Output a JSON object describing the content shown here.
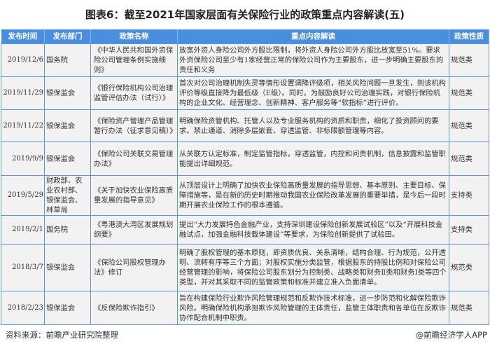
{
  "title": "图表6：截至2021年国家层面有关保险行业的政策重点内容解读(五)",
  "table": {
    "headers": [
      "发布时间",
      "发布部门",
      "政策名称",
      "重点内容解读",
      "政策性质"
    ],
    "rows": [
      {
        "date": "2019/12/6",
        "dept": "国务院",
        "name": "《中华人民共和国外资保险公司管理条例实施细则》",
        "content": "放宽外资人身险公司外方股比限制，将外资人身险公司外方股比放宽至51%。要求外资保险公司至少有1家经营正常的保险公司作为主要股东，进一步明确主要股东的责任和义务",
        "nature": "规范类"
      },
      {
        "date": "2019/11/29",
        "dept": "银保监会",
        "name": "《银行保险机构公司治理监管评估办法（试行）》",
        "content": "首次对公司治理机制失灵等情形设置调降评级项，相关风险问题一旦发生，则该机构评价等级直接降为最低级（E级）。同时，为鼓励良好公司治理实践，对银行保险机构的企业文化、经营理念、创新精神、客户服务等“软指标”进行评价。",
        "nature": "规范类"
      },
      {
        "date": "2019/11/22",
        "dept": "银保监会",
        "name": "《保险资产管理产品管理暂行办法（征求意见稿）》",
        "content": "明确保险资管机构、托管人以及专业服务机构的资质和职责，细化了投资顾问的要求。禁止通道、消除多层嵌套、穿透监管、非标限额管理等内容。",
        "nature": "规范类"
      },
      {
        "date": "2019/9/9",
        "dept": "银保监会",
        "name": "《保险公司关联交易管理办法》",
        "content": "从关联方认定标准，制定监管指标，穿透监管，内控和问责机制，信息披露和监管职能提出详细规范。",
        "nature": "规范类"
      },
      {
        "date": "2019/5/29",
        "dept": "财政部、农业农村部、银保监会、林草局",
        "name": "《关于加快农业保险高质量发展的指导意见》",
        "content": "从顶层设计上明确了加快农业保险高质量发展的指导思想、基本原则、主要目标、保障措施等，是在新的历史时期推动我国农业保险改革发展的重要举措，是今后一段时期开展农业保险工作的根本遵循。",
        "nature": "支持类"
      },
      {
        "date": "2019/2/1",
        "dept": "国务院",
        "name": "《粤港澳大湾区发展规划纲要》",
        "content": "提出“大力发展特色金融产业，支持深圳建设保险创新发展试验区”以及“开展科技金融试点，加强金融科技载体建设”等要求，为保险创新提供了试验田。",
        "nature": "支持类"
      },
      {
        "date": "2018/3/7",
        "dept": "银保监会",
        "name": "《保险公司股权管理办法》修订",
        "content": "明确了股权管理的基本原则，即资质优良、关系清晰，结构合理、行为规范，公开透明、流转有序等三个方面；对股权实施分类监管，根据股东的持股比例和对保险公司经营管理的影响，将保险公司股东划分为控制类、战略类和财务Ⅱ类和财务Ⅰ类等四个类型，并对其采取不同的监管政策和标准并建立准入负面清单。",
        "nature": "规范类"
      },
      {
        "date": "2018/2/23",
        "dept": "银保监会",
        "name": "《反保险欺诈指引》",
        "content": "旨在构建保险行业欺诈风险管理规范和反欺诈技术标准，进一步防范和化解保险欺诈风险。明确保险机构承担欺诈风险管理的主体责任，监管主体职责和各单位在反欺诈协作配合机制中职责。",
        "nature": "规范类"
      }
    ]
  },
  "footer": {
    "source": "资料来源：前瞻产业研究院整理",
    "brand": "@前瞻经济学人APP"
  },
  "colors": {
    "header_bg": "#4a8ee0",
    "border": "#5d94d8",
    "cell_bg": "#f2f2f2"
  }
}
